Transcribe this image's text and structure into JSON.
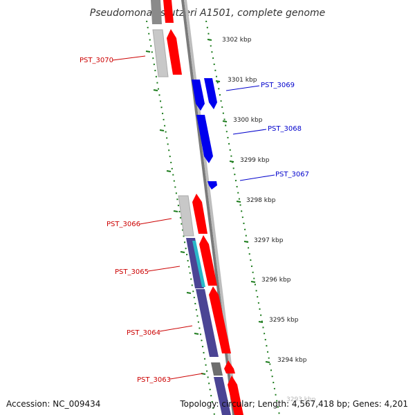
{
  "title": "Pseudomonas stutzeri A1501, complete genome",
  "footer": {
    "accession": "Accession: NC_009434",
    "topology": "Topology: circular; Length: 4,567,418 bp; Genes: 4,201"
  },
  "colors": {
    "forward": "#ff0000",
    "reverse": "#0000ee",
    "purple": "#4b4494",
    "cyan": "#2ab7c8",
    "grey": "#c8c8c8",
    "darkgrey": "#777777",
    "tick_green": "#1a7a1a",
    "label_red": "#cc0000",
    "label_blue": "#0000cc"
  },
  "ticks": [
    {
      "label": "3302 kbp"
    },
    {
      "label": "3301 kbp"
    },
    {
      "label": "3300 kbp"
    },
    {
      "label": "3299 kbp"
    },
    {
      "label": "3298 kbp"
    },
    {
      "label": "3297 kbp"
    },
    {
      "label": "3296 kbp"
    },
    {
      "label": "3295 kbp"
    },
    {
      "label": "3294 kbp"
    },
    {
      "label": "3293 kbp"
    }
  ],
  "gene_labels": {
    "pst_3070": "PST_3070",
    "pst_3069": "PST_3069",
    "pst_3068": "PST_3068",
    "pst_3067": "PST_3067",
    "pst_3066": "PST_3066",
    "pst_3065": "PST_3065",
    "pst_3064": "PST_3064",
    "pst_3063": "PST_3063"
  }
}
